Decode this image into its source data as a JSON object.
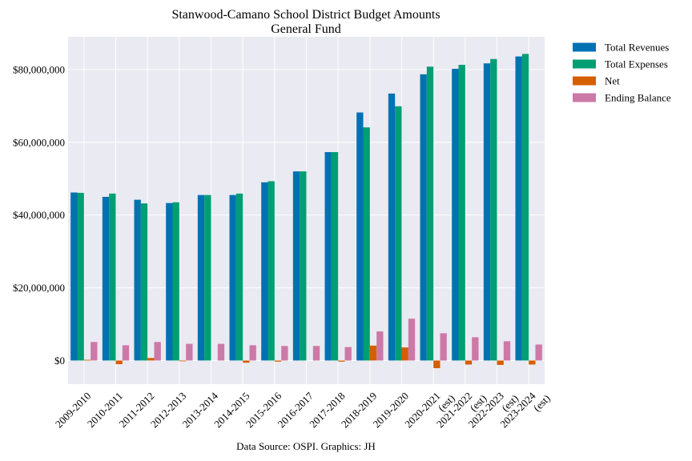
{
  "chart_data": {
    "type": "bar",
    "title": "Stanwood-Camano School District Budget Amounts",
    "subtitle": "General Fund",
    "source": "Data Source: OSPI. Graphics: JH",
    "categories": [
      [
        "2009-2010"
      ],
      [
        "2010-2011"
      ],
      [
        "2011-2012"
      ],
      [
        "2012-2013"
      ],
      [
        "2013-2014"
      ],
      [
        "2014-2015"
      ],
      [
        "2015-2016"
      ],
      [
        "2016-2017"
      ],
      [
        "2017-2018"
      ],
      [
        "2018-2019"
      ],
      [
        "2019-2020"
      ],
      [
        "2020-2021",
        "(est)"
      ],
      [
        "2021-2022",
        "(est)"
      ],
      [
        "2022-2023",
        "(est)"
      ],
      [
        "2023-2024",
        "(est)"
      ]
    ],
    "series": [
      {
        "name": "Total Revenues",
        "color": "#0072b2",
        "values": [
          46200000,
          45000000,
          44200000,
          43300000,
          45500000,
          45500000,
          49000000,
          52000000,
          57300000,
          68200000,
          73400000,
          78700000,
          80200000,
          81700000,
          83600000
        ]
      },
      {
        "name": "Total Expenses",
        "color": "#009e73",
        "values": [
          46100000,
          45900000,
          43200000,
          43500000,
          45500000,
          45900000,
          49300000,
          52000000,
          57300000,
          64100000,
          69900000,
          80800000,
          81300000,
          82900000,
          84300000
        ]
      },
      {
        "name": "Net",
        "color": "#d55e00",
        "values": [
          200000,
          -1000000,
          700000,
          -200000,
          0,
          -600000,
          -300000,
          0,
          -300000,
          4100000,
          3600000,
          -2100000,
          -1100000,
          -1200000,
          -1100000
        ]
      },
      {
        "name": "Ending Balance",
        "color": "#cc79a7",
        "values": [
          5100000,
          4200000,
          5100000,
          4600000,
          4600000,
          4200000,
          4000000,
          4000000,
          3700000,
          8000000,
          11500000,
          7500000,
          6400000,
          5300000,
          4400000
        ]
      }
    ],
    "yticks": [
      0,
      20000000,
      40000000,
      60000000,
      80000000
    ],
    "ytick_labels": [
      "$0",
      "$20,000,000",
      "$40,000,000",
      "$60,000,000",
      "$80,000,000"
    ],
    "ylim": [
      -6500000,
      89000000
    ],
    "grid": true,
    "legend_position": "outside-top-right",
    "background": "#eaeaf2"
  }
}
